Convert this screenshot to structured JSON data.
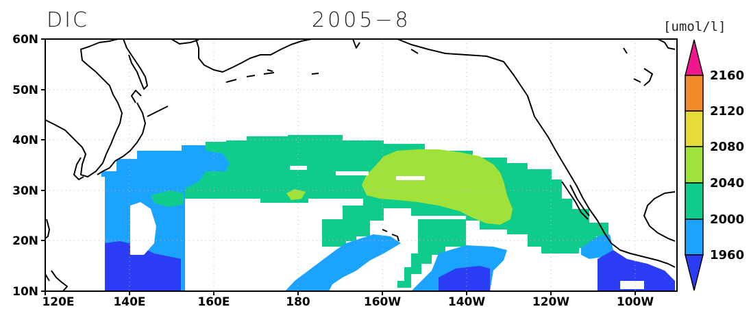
{
  "title": {
    "variable": "DIC",
    "date": "2005−8",
    "units": "[umol/l]"
  },
  "axes": {
    "lat_labels": [
      "60N",
      "50N",
      "40N",
      "30N",
      "20N",
      "10N"
    ],
    "lon_labels": [
      "120E",
      "140E",
      "160E",
      "180",
      "160W",
      "140W",
      "120W",
      "100W"
    ],
    "lat_range": [
      10,
      60
    ],
    "lon_range": [
      120,
      270
    ],
    "grid": "dotted"
  },
  "colorbar": {
    "labels": [
      "1960",
      "2000",
      "2040",
      "2080",
      "2120",
      "2160"
    ],
    "colors": [
      "#2b3cf5",
      "#1aa3ff",
      "#10cc8a",
      "#a0e23a",
      "#e6d93a",
      "#f08a2a",
      "#f0168c"
    ],
    "extend": "both"
  },
  "legend_levels": [
    {
      "range": "<1960",
      "color": "#2b3cf5"
    },
    {
      "range": "1960-2000",
      "color": "#1aa3ff"
    },
    {
      "range": "2000-2040",
      "color": "#10cc8a"
    },
    {
      "range": "2040-2080",
      "color": "#a0e23a"
    },
    {
      "range": "2080-2120",
      "color": "#e6d93a"
    },
    {
      "range": "2120-2160",
      "color": "#f08a2a"
    },
    {
      "range": ">2160",
      "color": "#f0168c"
    }
  ]
}
